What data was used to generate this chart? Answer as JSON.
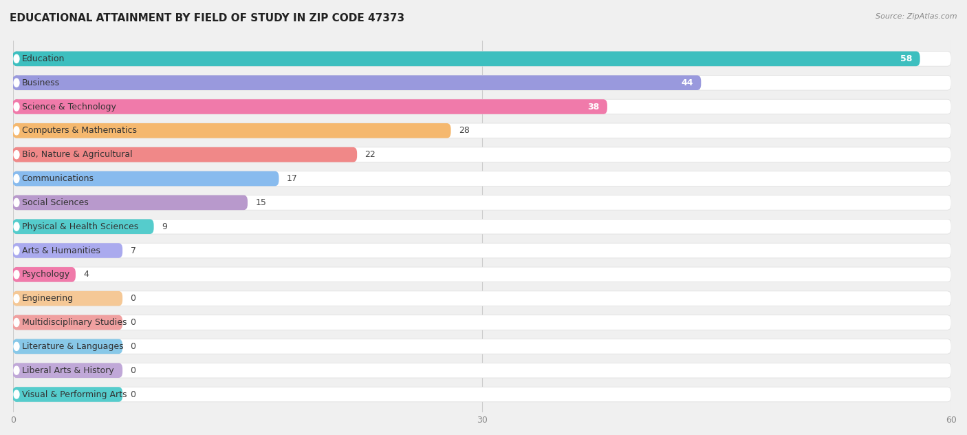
{
  "title": "EDUCATIONAL ATTAINMENT BY FIELD OF STUDY IN ZIP CODE 47373",
  "source": "Source: ZipAtlas.com",
  "categories": [
    "Education",
    "Business",
    "Science & Technology",
    "Computers & Mathematics",
    "Bio, Nature & Agricultural",
    "Communications",
    "Social Sciences",
    "Physical & Health Sciences",
    "Arts & Humanities",
    "Psychology",
    "Engineering",
    "Multidisciplinary Studies",
    "Literature & Languages",
    "Liberal Arts & History",
    "Visual & Performing Arts"
  ],
  "values": [
    58,
    44,
    38,
    28,
    22,
    17,
    15,
    9,
    7,
    4,
    0,
    0,
    0,
    0,
    0
  ],
  "colors": [
    "#3dbfbf",
    "#9999dd",
    "#f07aaa",
    "#f5b86e",
    "#f08888",
    "#88bbee",
    "#b899cc",
    "#55cccc",
    "#aaaaee",
    "#f07aaa",
    "#f5c896",
    "#f0a0a0",
    "#88c8e8",
    "#c0a8d8",
    "#55cccc"
  ],
  "zero_stub": 7,
  "xlim": [
    0,
    60
  ],
  "xticks": [
    0,
    30,
    60
  ],
  "background_color": "#f0f0f0",
  "bar_bg_color": "#ffffff",
  "title_fontsize": 11,
  "label_fontsize": 9,
  "value_fontsize": 9
}
